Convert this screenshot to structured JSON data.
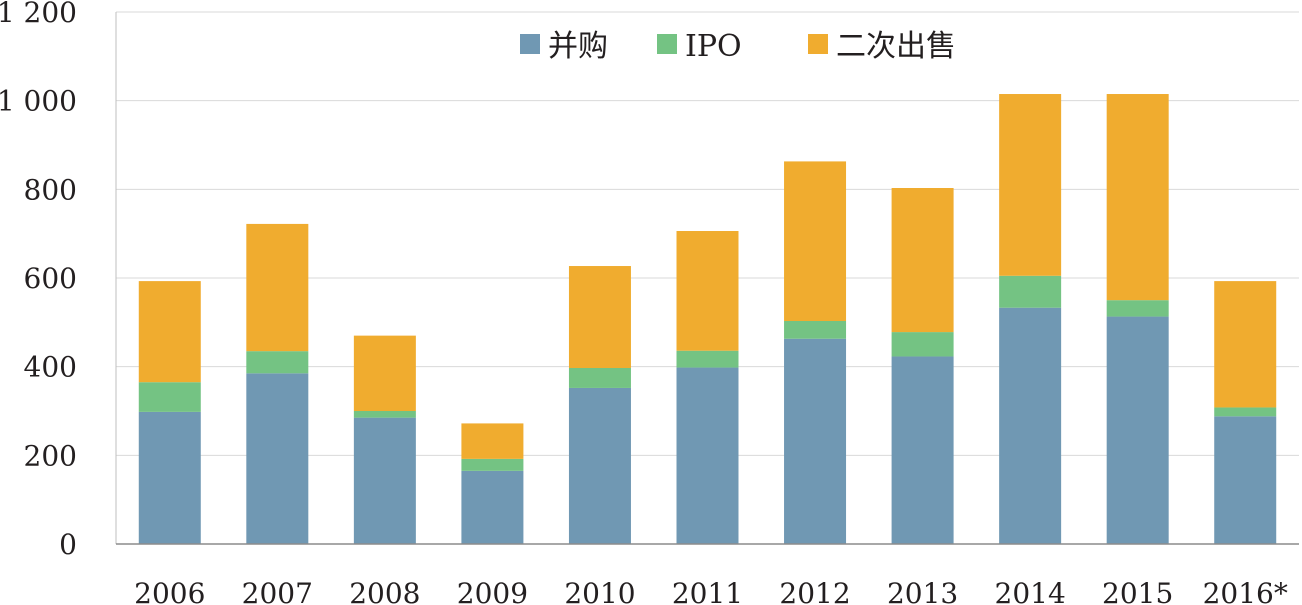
{
  "chart_data": {
    "type": "bar",
    "stacked": true,
    "title": "",
    "xlabel": "",
    "ylabel": "",
    "categories": [
      "2006",
      "2007",
      "2008",
      "2009",
      "2010",
      "2011",
      "2012",
      "2013",
      "2014",
      "2015",
      "2016*"
    ],
    "series": [
      {
        "name": "并购",
        "color": "#7098b3",
        "values": [
          298,
          385,
          285,
          165,
          352,
          398,
          463,
          423,
          533,
          513,
          288
        ]
      },
      {
        "name": "IPO",
        "color": "#74c383",
        "values": [
          67,
          50,
          15,
          27,
          45,
          38,
          40,
          55,
          72,
          37,
          20
        ]
      },
      {
        "name": "二次出售",
        "color": "#f0ac2f",
        "values": [
          228,
          287,
          170,
          80,
          230,
          270,
          360,
          325,
          410,
          465,
          285
        ]
      }
    ],
    "ylim": [
      0,
      1200
    ],
    "yticks": [
      0,
      200,
      400,
      600,
      800,
      1000,
      1200
    ],
    "ytick_labels": [
      "0",
      "200",
      "400",
      "600",
      "800",
      "1 000",
      "1 200"
    ],
    "grid": true,
    "legend_position": "top-center"
  }
}
